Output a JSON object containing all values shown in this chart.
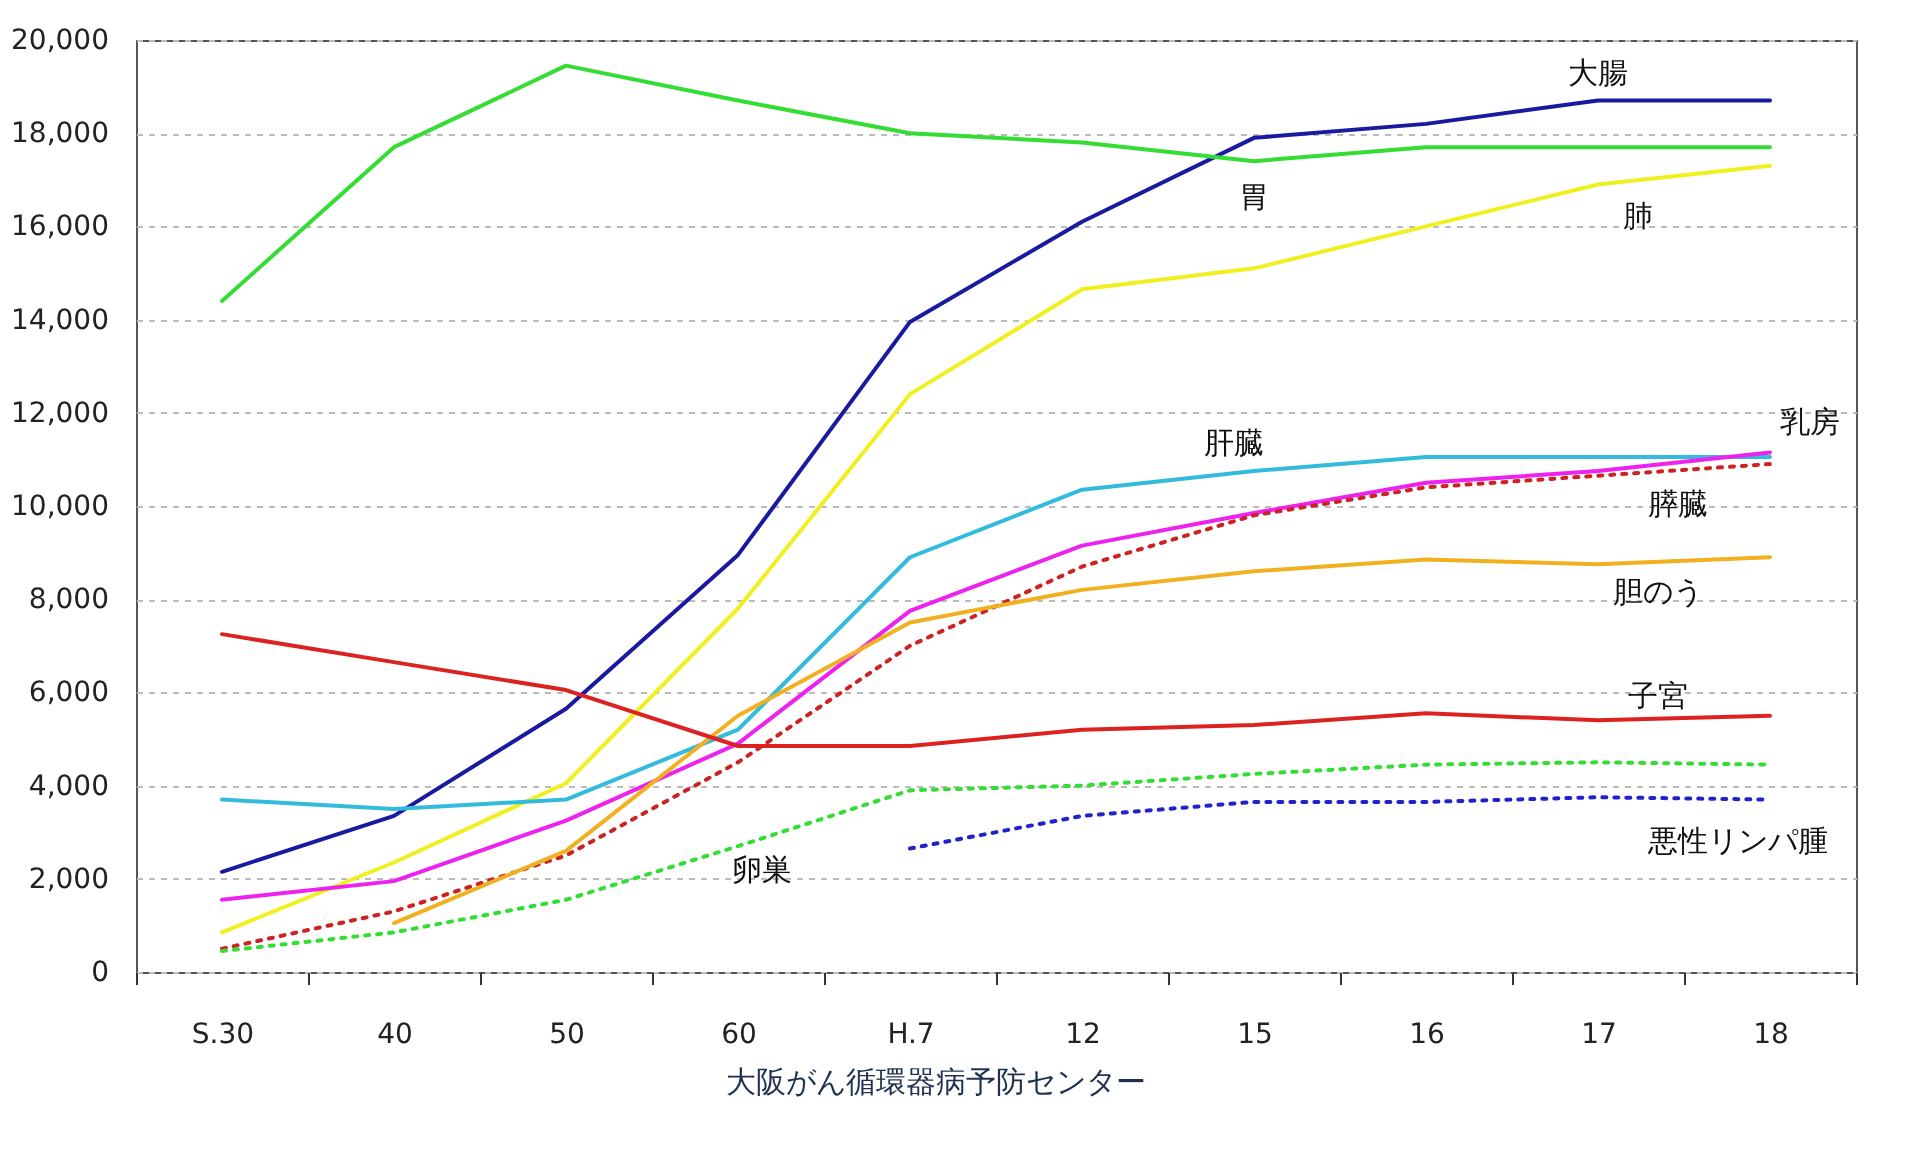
{
  "chart_data": {
    "type": "line",
    "categories": [
      "S.30",
      "40",
      "50",
      "60",
      "H.7",
      "12",
      "15",
      "16",
      "17",
      "18"
    ],
    "series": [
      {
        "name": "大腸",
        "color": "#1a1aa0",
        "line_style": "solid",
        "values": [
          2150,
          3350,
          5650,
          8950,
          13950,
          16100,
          17900,
          18200,
          18700,
          18700
        ]
      },
      {
        "name": "胃",
        "color": "#33dd33",
        "line_style": "solid",
        "values": [
          14400,
          17700,
          19450,
          18700,
          18000,
          17800,
          17400,
          17700,
          17700,
          17700
        ]
      },
      {
        "name": "肺",
        "color": "#f0f020",
        "line_style": "solid",
        "values": [
          850,
          2350,
          4050,
          7800,
          12400,
          14650,
          15100,
          16000,
          16900,
          17300
        ]
      },
      {
        "name": "肝臓",
        "color": "#33bbdd",
        "line_style": "solid",
        "values": [
          3700,
          3500,
          3700,
          5200,
          8900,
          10350,
          10750,
          11050,
          11050,
          11050
        ]
      },
      {
        "name": "乳房",
        "color": "#ee22ee",
        "line_style": "solid",
        "values": [
          1550,
          1950,
          3250,
          4900,
          7750,
          9150,
          9850,
          10500,
          10750,
          11150
        ]
      },
      {
        "name": "膵臓",
        "color": "#cc2222",
        "line_style": "dotted",
        "values": [
          500,
          1300,
          2500,
          4500,
          7000,
          8700,
          9800,
          10400,
          10650,
          10900
        ]
      },
      {
        "name": "胆のう",
        "color": "#f0b020",
        "line_style": "solid",
        "values": [
          null,
          1050,
          2600,
          5500,
          7500,
          8200,
          8600,
          8850,
          8750,
          8900
        ]
      },
      {
        "name": "子宮",
        "color": "#dd2222",
        "line_style": "solid",
        "values": [
          7250,
          6650,
          6050,
          4850,
          4850,
          5200,
          5300,
          5550,
          5400,
          5500
        ]
      },
      {
        "name": "卵巣",
        "color": "#33dd33",
        "line_style": "dotted",
        "values": [
          450,
          850,
          1550,
          2700,
          3900,
          4000,
          4250,
          4450,
          4500,
          4450
        ]
      },
      {
        "name": "悪性リンパ腫",
        "color": "#2222cc",
        "line_style": "dotted",
        "values": [
          null,
          null,
          null,
          null,
          2650,
          3350,
          3650,
          3650,
          3750,
          3700
        ]
      }
    ],
    "ylim": [
      0,
      20000
    ],
    "yticks": [
      0,
      {
        "value": 2000,
        "label": "2,000"
      },
      {
        "value": 4000,
        "label": "4,000"
      },
      {
        "value": 6000,
        "label": "6,000"
      },
      {
        "value": 8000,
        "label": "8,000"
      },
      {
        "value": 10000,
        "label": "10,000"
      },
      {
        "value": 12000,
        "label": "12,000"
      },
      {
        "value": 14000,
        "label": "14,000"
      },
      {
        "value": 16000,
        "label": "16,000"
      },
      {
        "value": 18000,
        "label": "18,000"
      },
      {
        "value": 20000,
        "label": "20,000"
      }
    ],
    "grid": "y",
    "marker": "none",
    "legend": false,
    "annotations": [
      "大阪がん循環器病予防センター"
    ]
  }
}
